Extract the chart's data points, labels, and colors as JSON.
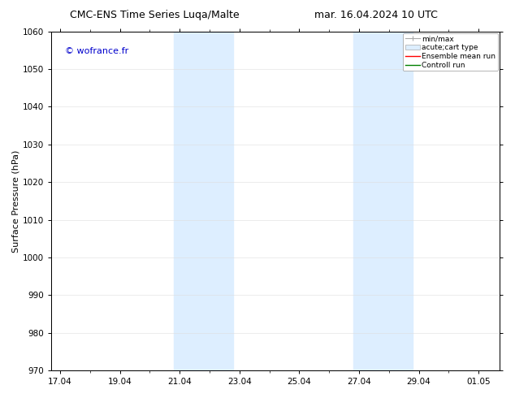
{
  "title_left": "CMC-ENS Time Series Luqa/Malte",
  "title_right": "mar. 16.04.2024 10 UTC",
  "ylabel": "Surface Pressure (hPa)",
  "ylim": [
    970,
    1060
  ],
  "yticks": [
    970,
    980,
    990,
    1000,
    1010,
    1020,
    1030,
    1040,
    1050,
    1060
  ],
  "xtick_labels": [
    "17.04",
    "19.04",
    "21.04",
    "23.04",
    "25.04",
    "27.04",
    "29.04",
    "01.05"
  ],
  "xtick_positions": [
    0,
    2,
    4,
    6,
    8,
    10,
    12,
    14
  ],
  "xmin": -0.3,
  "xmax": 14.7,
  "shaded_bands": [
    {
      "x_start": 3.8,
      "x_end": 5.8
    },
    {
      "x_start": 9.8,
      "x_end": 11.8
    }
  ],
  "shaded_color": "#ddeeff",
  "background_color": "#ffffff",
  "watermark_text": "© wofrance.fr",
  "watermark_color": "#0000cc",
  "legend_entries": [
    {
      "label": "min/max",
      "color": "#aaaaaa",
      "linestyle": "-",
      "linewidth": 1.0
    },
    {
      "label": "acute;cart type",
      "color": "#ddeeff",
      "linestyle": "-",
      "linewidth": 8
    },
    {
      "label": "Ensemble mean run",
      "color": "#ff0000",
      "linestyle": "-",
      "linewidth": 1.0
    },
    {
      "label": "Controll run",
      "color": "#008000",
      "linestyle": "-",
      "linewidth": 1.0
    }
  ],
  "title_fontsize": 9,
  "axis_label_fontsize": 8,
  "tick_fontsize": 7.5,
  "legend_fontsize": 6.5,
  "watermark_fontsize": 8
}
